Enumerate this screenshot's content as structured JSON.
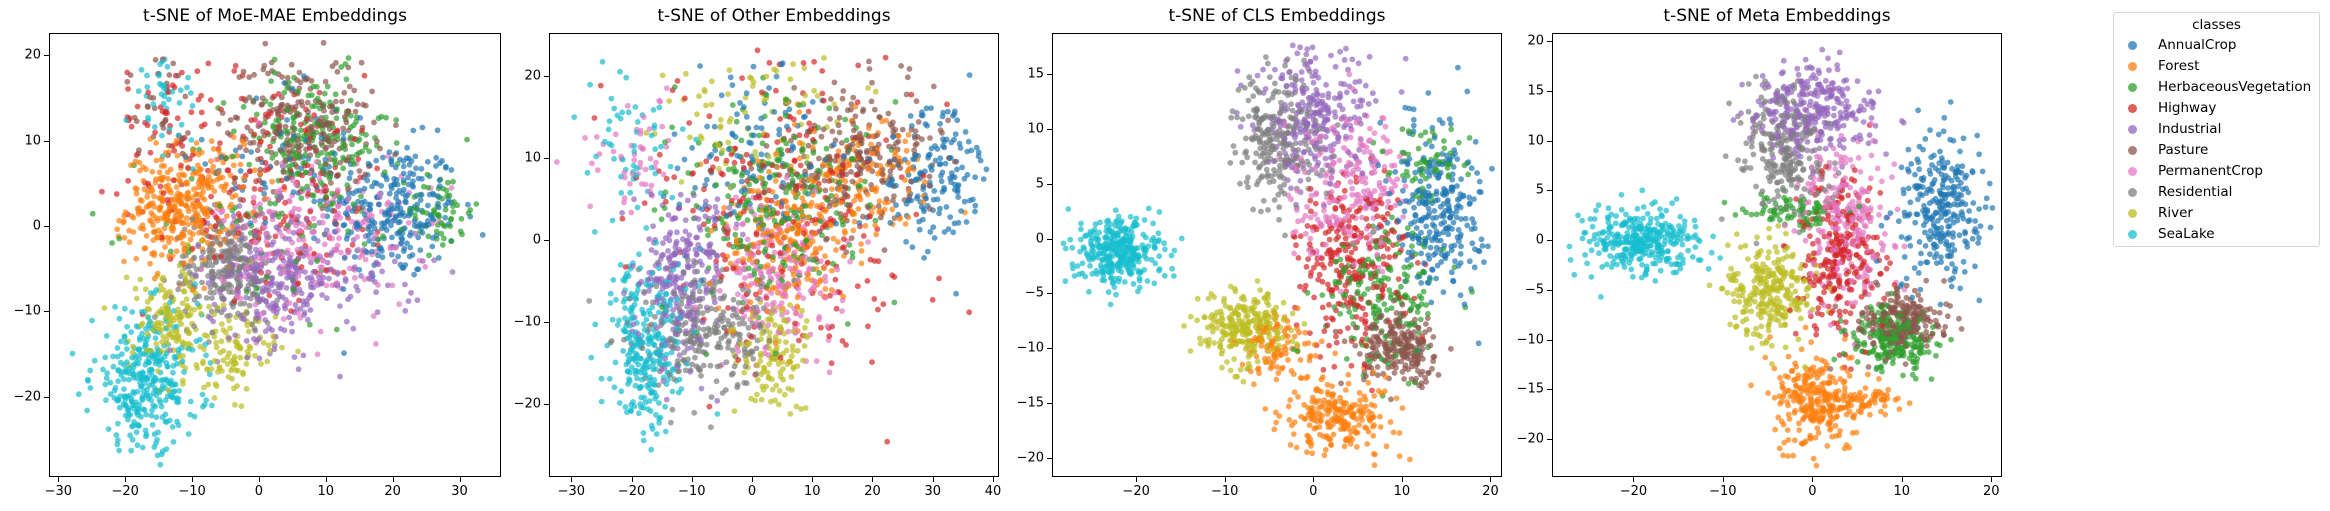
{
  "legend": {
    "title": "classes",
    "items": [
      {
        "label": "AnnualCrop",
        "color": "#1f77b4"
      },
      {
        "label": "Forest",
        "color": "#ff7f0e"
      },
      {
        "label": "HerbaceousVegetation",
        "color": "#2ca02c"
      },
      {
        "label": "Highway",
        "color": "#d62728"
      },
      {
        "label": "Industrial",
        "color": "#9467bd"
      },
      {
        "label": "Pasture",
        "color": "#8c564b"
      },
      {
        "label": "PermanentCrop",
        "color": "#e377c2"
      },
      {
        "label": "Residential",
        "color": "#7f7f7f"
      },
      {
        "label": "River",
        "color": "#bcbd22"
      },
      {
        "label": "SeaLake",
        "color": "#17becf"
      }
    ]
  },
  "chart_data": [
    {
      "type": "scatter",
      "title": "t-SNE of MoE-MAE Embeddings",
      "xlabel": "",
      "ylabel": "",
      "xlim": [
        -31.4,
        36.2
      ],
      "ylim": [
        -29.4,
        22.6
      ],
      "xticks": [
        -30,
        -20,
        -10,
        0,
        10,
        20,
        30
      ],
      "yticks": [
        -20,
        -10,
        0,
        10,
        20
      ],
      "grid": false,
      "marker_alpha": 0.7,
      "clusters": [
        {
          "class": "AnnualCrop",
          "blobs": [
            [
              20,
              2,
              6,
              5,
              260
            ],
            [
              5,
              8,
              8,
              6,
              60
            ]
          ]
        },
        {
          "class": "Forest",
          "blobs": [
            [
              -12,
              2,
              5,
              4,
              300
            ],
            [
              -8,
              5,
              5,
              4,
              60
            ]
          ]
        },
        {
          "class": "HerbaceousVegetation",
          "blobs": [
            [
              8,
              10,
              7,
              5,
              200
            ],
            [
              27,
              2,
              3,
              3,
              60
            ],
            [
              0,
              0,
              10,
              8,
              60
            ]
          ]
        },
        {
          "class": "Highway",
          "blobs": [
            [
              2,
              5,
              12,
              8,
              200
            ],
            [
              -14,
              13,
              4,
              5,
              40
            ]
          ]
        },
        {
          "class": "Industrial",
          "blobs": [
            [
              2,
              -6,
              6,
              5,
              250
            ],
            [
              15,
              -5,
              6,
              4,
              60
            ]
          ]
        },
        {
          "class": "Pasture",
          "blobs": [
            [
              6,
              12,
              7,
              5,
              230
            ],
            [
              -15,
              14,
              3,
              4,
              30
            ]
          ]
        },
        {
          "class": "PermanentCrop",
          "blobs": [
            [
              8,
              -1,
              9,
              6,
              230
            ]
          ]
        },
        {
          "class": "Residential",
          "blobs": [
            [
              -5,
              -5,
              5,
              4,
              250
            ]
          ]
        },
        {
          "class": "River",
          "blobs": [
            [
              -13,
              -11,
              4,
              4,
              150
            ],
            [
              -4,
              -15,
              4,
              3,
              90
            ]
          ]
        },
        {
          "class": "SeaLake",
          "blobs": [
            [
              -17,
              -18,
              5,
              5,
              330
            ],
            [
              -14,
              15,
              3,
              3,
              40
            ]
          ]
        }
      ]
    },
    {
      "type": "scatter",
      "title": "t-SNE of Other Embeddings",
      "xlabel": "",
      "ylabel": "",
      "xlim": [
        -33.7,
        41.0
      ],
      "ylim": [
        -28.9,
        25.2
      ],
      "xticks": [
        -30,
        -20,
        -10,
        0,
        10,
        20,
        30,
        40
      ],
      "yticks": [
        -20,
        -10,
        0,
        10,
        20
      ],
      "grid": false,
      "marker_alpha": 0.7,
      "clusters": [
        {
          "class": "AnnualCrop",
          "blobs": [
            [
              30,
              8,
              5,
              5,
              160
            ],
            [
              0,
              10,
              8,
              7,
              120
            ]
          ]
        },
        {
          "class": "Forest",
          "blobs": [
            [
              5,
              0,
              6,
              6,
              200
            ],
            [
              18,
              7,
              7,
              5,
              150
            ]
          ]
        },
        {
          "class": "HerbaceousVegetation",
          "blobs": [
            [
              5,
              5,
              9,
              8,
              250
            ]
          ]
        },
        {
          "class": "Highway",
          "blobs": [
            [
              5,
              3,
              14,
              11,
              250
            ]
          ]
        },
        {
          "class": "Industrial",
          "blobs": [
            [
              -12,
              -4,
              5,
              6,
              250
            ]
          ]
        },
        {
          "class": "Pasture",
          "blobs": [
            [
              18,
              10,
              8,
              5,
              230
            ]
          ]
        },
        {
          "class": "PermanentCrop",
          "blobs": [
            [
              5,
              -5,
              6,
              6,
              200
            ],
            [
              -20,
              10,
              5,
              5,
              50
            ]
          ]
        },
        {
          "class": "Residential",
          "blobs": [
            [
              -8,
              -11,
              7,
              5,
              250
            ]
          ]
        },
        {
          "class": "River",
          "blobs": [
            [
              3,
              -14,
              4,
              4,
              120
            ],
            [
              0,
              15,
              10,
              5,
              80
            ]
          ]
        },
        {
          "class": "SeaLake",
          "blobs": [
            [
              -18,
              -12,
              4,
              7,
              280
            ],
            [
              -20,
              12,
              5,
              5,
              50
            ]
          ]
        }
      ]
    },
    {
      "type": "scatter",
      "title": "t-SNE of CLS Embeddings",
      "xlabel": "",
      "ylabel": "",
      "xlim": [
        -29.5,
        21.3
      ],
      "ylim": [
        -21.7,
        18.7
      ],
      "xticks": [
        -20,
        -10,
        0,
        10,
        20
      ],
      "yticks": [
        -20,
        -15,
        -10,
        -5,
        0,
        5,
        10,
        15
      ],
      "grid": false,
      "marker_alpha": 0.7,
      "clusters": [
        {
          "class": "AnnualCrop",
          "blobs": [
            [
              14,
              3,
              3,
              5,
              280
            ]
          ]
        },
        {
          "class": "Forest",
          "blobs": [
            [
              3,
              -16,
              4,
              2,
              220
            ],
            [
              -4,
              -10,
              3,
              2,
              100
            ]
          ]
        },
        {
          "class": "HerbaceousVegetation",
          "blobs": [
            [
              8,
              -5,
              4,
              4,
              180
            ],
            [
              13,
              7,
              3,
              2,
              60
            ]
          ]
        },
        {
          "class": "Highway",
          "blobs": [
            [
              4,
              -2,
              4,
              5,
              260
            ]
          ]
        },
        {
          "class": "Industrial",
          "blobs": [
            [
              0,
              11,
              4,
              4,
              260
            ]
          ]
        },
        {
          "class": "Pasture",
          "blobs": [
            [
              10,
              -10,
              3,
              2,
              220
            ]
          ]
        },
        {
          "class": "PermanentCrop",
          "blobs": [
            [
              4,
              5,
              4,
              4,
              240
            ]
          ]
        },
        {
          "class": "Residential",
          "blobs": [
            [
              -4,
              9,
              3,
              4,
              240
            ]
          ]
        },
        {
          "class": "River",
          "blobs": [
            [
              -8,
              -8,
              3,
              2,
              250
            ]
          ]
        },
        {
          "class": "SeaLake",
          "blobs": [
            [
              -22,
              -1,
              3,
              2,
              330
            ]
          ]
        }
      ]
    },
    {
      "type": "scatter",
      "title": "t-SNE of Meta Embeddings",
      "xlabel": "",
      "ylabel": "",
      "xlim": [
        -29.1,
        21.2
      ],
      "ylim": [
        -23.8,
        20.8
      ],
      "xticks": [
        -20,
        -10,
        0,
        10,
        20
      ],
      "yticks": [
        -20,
        -15,
        -10,
        -5,
        0,
        5,
        10,
        15,
        20
      ],
      "grid": false,
      "marker_alpha": 0.7,
      "clusters": [
        {
          "class": "AnnualCrop",
          "blobs": [
            [
              14,
              3,
              3,
              5,
              280
            ]
          ]
        },
        {
          "class": "Forest",
          "blobs": [
            [
              0,
              -16,
              3,
              3,
              260
            ],
            [
              6,
              -16,
              3,
              1,
              60
            ]
          ]
        },
        {
          "class": "HerbaceousVegetation",
          "blobs": [
            [
              9,
              -10,
              3,
              2,
              200
            ],
            [
              -3,
              3,
              4,
              1,
              80
            ]
          ]
        },
        {
          "class": "Highway",
          "blobs": [
            [
              3,
              -2,
              3,
              5,
              250
            ]
          ]
        },
        {
          "class": "Industrial",
          "blobs": [
            [
              0,
              13,
              4,
              3,
              280
            ]
          ]
        },
        {
          "class": "Pasture",
          "blobs": [
            [
              10,
              -8,
              3,
              2,
              230
            ]
          ]
        },
        {
          "class": "PermanentCrop",
          "blobs": [
            [
              4,
              2,
              3,
              5,
              240
            ]
          ]
        },
        {
          "class": "Residential",
          "blobs": [
            [
              -3,
              9,
              3,
              4,
              240
            ]
          ]
        },
        {
          "class": "River",
          "blobs": [
            [
              -5,
              -5,
              3,
              3,
              260
            ]
          ]
        },
        {
          "class": "SeaLake",
          "blobs": [
            [
              -19,
              0,
              4,
              2,
              330
            ]
          ]
        }
      ]
    }
  ]
}
